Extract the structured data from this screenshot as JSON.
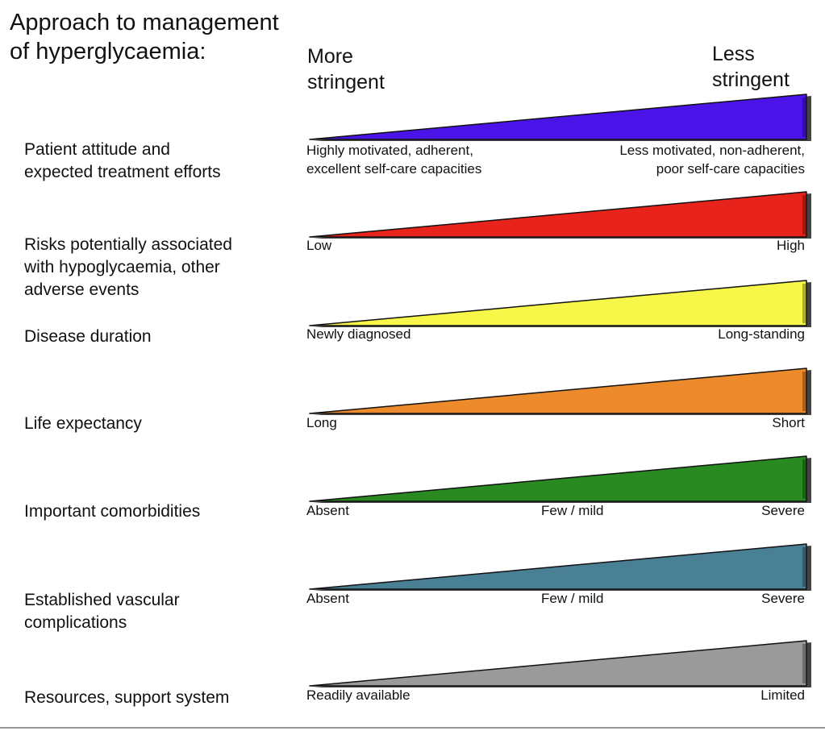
{
  "title_line1": "Approach to management",
  "title_line2": "of hyperglycaemia:",
  "scale": {
    "more_line1": "More",
    "more_line2": "stringent",
    "less_line1": "Less",
    "less_line2": "stringent"
  },
  "rows": [
    {
      "factor": [
        "Patient attitude and",
        "expected treatment efforts"
      ],
      "left": [
        "Highly motivated, adherent,",
        "excellent self-care capacities"
      ],
      "right": [
        "Less motivated, non-adherent,",
        "poor self-care capacities"
      ],
      "color": "#4a14e8"
    },
    {
      "factor": [
        "Risks potentially associated",
        "with hypoglycaemia, other",
        "adverse events"
      ],
      "left": [
        "Low"
      ],
      "right": [
        "High"
      ],
      "color": "#e8231c"
    },
    {
      "factor": [
        "Disease duration"
      ],
      "left": [
        "Newly diagnosed"
      ],
      "right": [
        "Long-standing"
      ],
      "color": "#f7f74a"
    },
    {
      "factor": [
        "Life expectancy"
      ],
      "left": [
        "Long"
      ],
      "right": [
        "Short"
      ],
      "color": "#ec8a2c"
    },
    {
      "factor": [
        "Important comorbidities"
      ],
      "left": [
        "Absent"
      ],
      "mid": "Few / mild",
      "right": [
        "Severe"
      ],
      "color": "#2a8a22"
    },
    {
      "factor": [
        "Established vascular",
        "complications"
      ],
      "left": [
        "Absent"
      ],
      "mid": "Few / mild",
      "right": [
        "Severe"
      ],
      "color": "#4a8096"
    },
    {
      "factor": [
        "Resources, support system"
      ],
      "left": [
        "Readily available"
      ],
      "right": [
        "Limited"
      ],
      "color": "#9a9a9a"
    }
  ]
}
